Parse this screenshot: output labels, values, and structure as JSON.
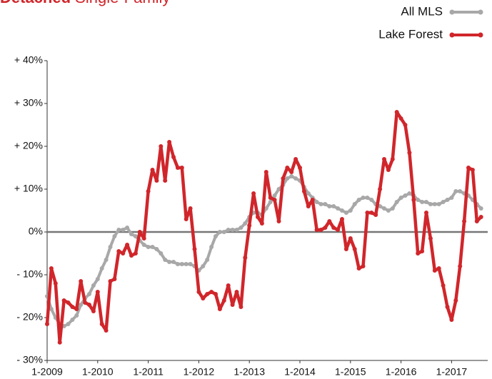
{
  "chart_data": {
    "type": "line",
    "title": "Detached",
    "subtitle": "Single-Family",
    "legend": "top-right",
    "zero_line": true,
    "ylim": [
      -30,
      40
    ],
    "yticks": [
      {
        "value": 40,
        "label": "+ 40%"
      },
      {
        "value": 30,
        "label": "+ 30%"
      },
      {
        "value": 20,
        "label": "+ 20%"
      },
      {
        "value": 10,
        "label": "+ 10%"
      },
      {
        "value": 0,
        "label": "0%"
      },
      {
        "value": -10,
        "label": "- 10%"
      },
      {
        "value": -20,
        "label": "- 20%"
      },
      {
        "value": -30,
        "label": "- 30%"
      }
    ],
    "categories": [
      "1-2009",
      "2-2009",
      "3-2009",
      "4-2009",
      "5-2009",
      "6-2009",
      "7-2009",
      "8-2009",
      "9-2009",
      "10-2009",
      "11-2009",
      "12-2009",
      "1-2010",
      "2-2010",
      "3-2010",
      "4-2010",
      "5-2010",
      "6-2010",
      "7-2010",
      "8-2010",
      "9-2010",
      "10-2010",
      "11-2010",
      "12-2010",
      "1-2011",
      "2-2011",
      "3-2011",
      "4-2011",
      "5-2011",
      "6-2011",
      "7-2011",
      "8-2011",
      "9-2011",
      "10-2011",
      "11-2011",
      "12-2011",
      "1-2012",
      "2-2012",
      "3-2012",
      "4-2012",
      "5-2012",
      "6-2012",
      "7-2012",
      "8-2012",
      "9-2012",
      "10-2012",
      "11-2012",
      "12-2012",
      "1-2013",
      "2-2013",
      "3-2013",
      "4-2013",
      "5-2013",
      "6-2013",
      "7-2013",
      "8-2013",
      "9-2013",
      "10-2013",
      "11-2013",
      "12-2013",
      "1-2014",
      "2-2014",
      "3-2014",
      "4-2014",
      "5-2014",
      "6-2014",
      "7-2014",
      "8-2014",
      "9-2014",
      "10-2014",
      "11-2014",
      "12-2014",
      "1-2015",
      "2-2015",
      "3-2015",
      "4-2015",
      "5-2015",
      "6-2015",
      "7-2015",
      "8-2015",
      "9-2015",
      "10-2015",
      "11-2015",
      "12-2015",
      "1-2016",
      "2-2016",
      "3-2016",
      "4-2016",
      "5-2016",
      "6-2016",
      "7-2016",
      "8-2016",
      "9-2016",
      "10-2016",
      "11-2016",
      "12-2016",
      "1-2017",
      "2-2017",
      "3-2017",
      "4-2017",
      "5-2017",
      "6-2017",
      "7-2017",
      "8-2017"
    ],
    "xticks": [
      "1-2009",
      "1-2010",
      "1-2011",
      "1-2012",
      "1-2013",
      "1-2014",
      "1-2015",
      "1-2016",
      "1-2017"
    ],
    "series": [
      {
        "name": "All MLS",
        "color": "#a8a8a8",
        "values": [
          -15,
          -18,
          -20,
          -21.5,
          -22,
          -21.5,
          -20.5,
          -19.5,
          -17,
          -15.5,
          -14.5,
          -12.5,
          -11,
          -8.5,
          -6.5,
          -3.5,
          -1,
          0.5,
          0.5,
          1,
          -0.5,
          -1,
          -2,
          -3,
          -3.5,
          -3.5,
          -4,
          -5,
          -6.5,
          -7,
          -7,
          -7.5,
          -7.5,
          -7.5,
          -7.5,
          -8,
          -9,
          -8,
          -6.5,
          -3.5,
          -1,
          0,
          0,
          0.5,
          0.5,
          0.5,
          1,
          2,
          3.5,
          4.5,
          4.5,
          4,
          5.5,
          7,
          8.5,
          10,
          11,
          12.5,
          13,
          12.5,
          12,
          10.5,
          9,
          8,
          7,
          6.5,
          6.5,
          6,
          6,
          5.5,
          5,
          4.5,
          5,
          6.5,
          7.5,
          8,
          8,
          7.5,
          6.5,
          6,
          5.5,
          5,
          5.5,
          7,
          8,
          8.5,
          9,
          8.5,
          7.5,
          7,
          7,
          6.5,
          6.5,
          6.5,
          7,
          7.5,
          8,
          9.5,
          9.5,
          9,
          8.5,
          7.5,
          6.5,
          5.5
        ]
      },
      {
        "name": "Lake Forest",
        "color": "#d0262b",
        "values": [
          -21.5,
          -8.5,
          -12,
          -25.8,
          -16,
          -16.5,
          -17.5,
          -18,
          -11.5,
          -16.5,
          -17,
          -18.5,
          -14,
          -21.5,
          -23,
          -11.5,
          -11,
          -4.5,
          -5,
          -3,
          -5.5,
          -5,
          0,
          -1.5,
          9.5,
          14.5,
          12,
          20,
          12,
          21,
          17.5,
          15,
          15,
          3,
          5.5,
          -4,
          -14,
          -15.5,
          -14.5,
          -14,
          -14.5,
          -18,
          -16,
          -12.5,
          -17,
          -14,
          -17.5,
          -6,
          1.5,
          9,
          3.5,
          2,
          14,
          8,
          7.5,
          2.5,
          12.5,
          15,
          14,
          17,
          15,
          9.5,
          6,
          7.5,
          0.5,
          0.5,
          1,
          2.5,
          1,
          0.5,
          3,
          -4,
          -1.5,
          -4,
          -8.5,
          -8,
          4.5,
          4.5,
          4,
          10,
          17,
          14.5,
          17,
          28,
          26.5,
          25,
          18.5,
          7.5,
          -5,
          -4.5,
          4.5,
          -1.5,
          -9,
          -8.5,
          -12.5,
          -17.5,
          -20.5,
          -16,
          -8,
          2.5,
          15,
          14.5,
          2.5,
          3.5
        ]
      }
    ]
  }
}
